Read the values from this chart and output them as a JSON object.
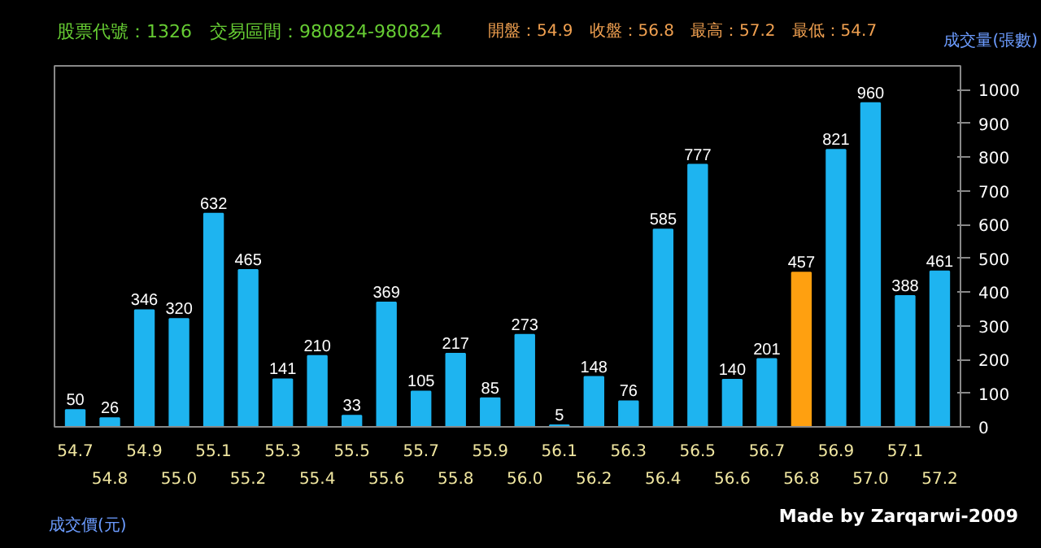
{
  "chart_data": {
    "type": "bar",
    "title": "股票代號：1326　交易區間：980824-980824",
    "subtitle": "開盤：54.9　收盤：56.8　最高：57.2　最低：54.7",
    "xlabel": "成交價(元)",
    "ylabel": "成交量(張數)",
    "annotations": [
      "Made by Zarqarwi-2009"
    ],
    "categories": [
      "54.7",
      "54.8",
      "54.9",
      "55.0",
      "55.1",
      "55.2",
      "55.3",
      "55.4",
      "55.5",
      "55.6",
      "55.7",
      "55.8",
      "55.9",
      "56.0",
      "56.1",
      "56.2",
      "56.3",
      "56.4",
      "56.5",
      "56.6",
      "56.7",
      "56.8",
      "56.9",
      "57.0",
      "57.1",
      "57.2"
    ],
    "values": [
      50,
      26,
      346,
      320,
      632,
      465,
      141,
      210,
      33,
      369,
      105,
      217,
      85,
      273,
      5,
      148,
      76,
      585,
      777,
      140,
      201,
      457,
      821,
      960,
      388,
      461
    ],
    "colors": [
      "#1eb4f0",
      "#1eb4f0",
      "#1eb4f0",
      "#1eb4f0",
      "#1eb4f0",
      "#1eb4f0",
      "#1eb4f0",
      "#1eb4f0",
      "#1eb4f0",
      "#1eb4f0",
      "#1eb4f0",
      "#1eb4f0",
      "#1eb4f0",
      "#1eb4f0",
      "#1eb4f0",
      "#1eb4f0",
      "#1eb4f0",
      "#1eb4f0",
      "#1eb4f0",
      "#1eb4f0",
      "#1eb4f0",
      "#ffa010",
      "#1eb4f0",
      "#1eb4f0",
      "#1eb4f0",
      "#1eb4f0"
    ],
    "ylim": [
      0,
      1070
    ],
    "yticks": [
      0,
      100,
      200,
      300,
      400,
      500,
      600,
      700,
      800,
      900,
      1000
    ],
    "data_labels": true,
    "grid": false,
    "legend": false
  }
}
